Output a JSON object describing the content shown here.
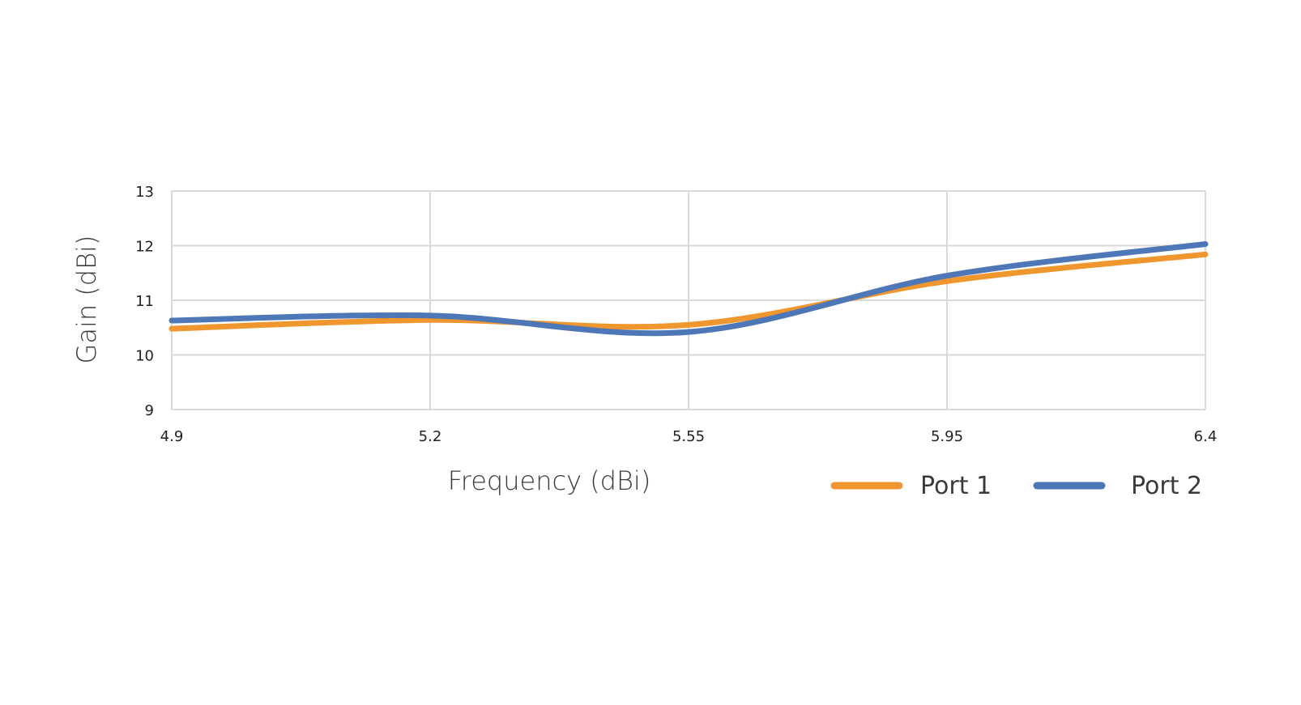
{
  "chart_data": {
    "type": "line",
    "title": "",
    "xlabel": "Frequency (dBi)",
    "ylabel": "Gain (dBi)",
    "x": [
      4.9,
      5.2,
      5.55,
      5.95,
      6.4
    ],
    "x_tick_labels": [
      "4.9",
      "5.2",
      "5.55",
      "5.95",
      "6.4"
    ],
    "y_ticks": [
      9,
      10,
      11,
      12,
      13
    ],
    "ylim": [
      9,
      13
    ],
    "grid": true,
    "legend_position": "bottom-right",
    "series": [
      {
        "name": "Port 1",
        "color": "#F0962E",
        "values": [
          10.48,
          10.64,
          10.55,
          11.35,
          11.84
        ]
      },
      {
        "name": "Port 2",
        "color": "#4E77B8",
        "values": [
          10.63,
          10.72,
          10.42,
          11.45,
          12.03
        ]
      }
    ]
  }
}
